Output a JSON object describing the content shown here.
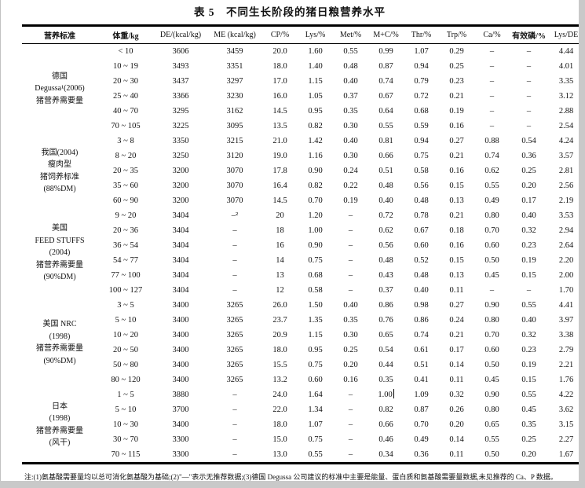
{
  "page": {
    "title": "表 5　不同生长阶段的猪日粮营养水平",
    "footnote": "注:(1)氨基酸需要量均以总可消化氨基酸为基础;(2)\"—\"表示无推荐数据;(3)德国 Degussa 公司建议的标准中主要是能量、蛋白质和氨基酸需要量数据,未见推荐的 Ca、P 数据。"
  },
  "table": {
    "columns": [
      "营养标准",
      "体重/kg",
      "DE/(kcal/kg)",
      "ME (kcal/kg)",
      "CP/%",
      "Lys/%",
      "Met/%",
      "M+C/%",
      "Thr/%",
      "Trp/%",
      "Ca/%",
      "有效磷/%",
      "Lys/DE"
    ],
    "groups": [
      {
        "label_lines": [
          "德国",
          "Degussa¹(2006)",
          "猪营养需要量"
        ],
        "rows": [
          [
            "< 10",
            "3606",
            "3459",
            "20.0",
            "1.60",
            "0.55",
            "0.99",
            "1.07",
            "0.29",
            "–",
            "–",
            "4.44"
          ],
          [
            "10 ~ 19",
            "3493",
            "3351",
            "18.0",
            "1.40",
            "0.48",
            "0.87",
            "0.94",
            "0.25",
            "–",
            "–",
            "4.01"
          ],
          [
            "20 ~ 30",
            "3437",
            "3297",
            "17.0",
            "1.15",
            "0.40",
            "0.74",
            "0.79",
            "0.23",
            "–",
            "–",
            "3.35"
          ],
          [
            "25 ~ 40",
            "3366",
            "3230",
            "16.0",
            "1.05",
            "0.37",
            "0.67",
            "0.72",
            "0.21",
            "–",
            "–",
            "3.12"
          ],
          [
            "40 ~ 70",
            "3295",
            "3162",
            "14.5",
            "0.95",
            "0.35",
            "0.64",
            "0.68",
            "0.19",
            "–",
            "–",
            "2.88"
          ],
          [
            "70 ~ 105",
            "3225",
            "3095",
            "13.5",
            "0.82",
            "0.30",
            "0.55",
            "0.59",
            "0.16",
            "–",
            "–",
            "2.54"
          ]
        ]
      },
      {
        "label_lines": [
          "我国(2004)",
          "瘦肉型",
          "猪饲养标准",
          "(88%DM)"
        ],
        "rows": [
          [
            "3 ~ 8",
            "3350",
            "3215",
            "21.0",
            "1.42",
            "0.40",
            "0.81",
            "0.94",
            "0.27",
            "0.88",
            "0.54",
            "4.24"
          ],
          [
            "8 ~ 20",
            "3250",
            "3120",
            "19.0",
            "1.16",
            "0.30",
            "0.66",
            "0.75",
            "0.21",
            "0.74",
            "0.36",
            "3.57"
          ],
          [
            "20 ~ 35",
            "3200",
            "3070",
            "17.8",
            "0.90",
            "0.24",
            "0.51",
            "0.58",
            "0.16",
            "0.62",
            "0.25",
            "2.81"
          ],
          [
            "35 ~ 60",
            "3200",
            "3070",
            "16.4",
            "0.82",
            "0.22",
            "0.48",
            "0.56",
            "0.15",
            "0.55",
            "0.20",
            "2.56"
          ],
          [
            "60 ~ 90",
            "3200",
            "3070",
            "14.5",
            "0.70",
            "0.19",
            "0.40",
            "0.48",
            "0.13",
            "0.49",
            "0.17",
            "2.19"
          ]
        ]
      },
      {
        "label_lines": [
          "美国",
          "FEED STUFFS",
          "(2004)",
          "猪营养需要量",
          "(90%DM)"
        ],
        "rows": [
          [
            "9 ~ 20",
            "3404",
            "–²",
            "20",
            "1.20",
            "–",
            "0.72",
            "0.78",
            "0.21",
            "0.80",
            "0.40",
            "3.53"
          ],
          [
            "20 ~ 36",
            "3404",
            "–",
            "18",
            "1.00",
            "–",
            "0.62",
            "0.67",
            "0.18",
            "0.70",
            "0.32",
            "2.94"
          ],
          [
            "36 ~ 54",
            "3404",
            "–",
            "16",
            "0.90",
            "–",
            "0.56",
            "0.60",
            "0.16",
            "0.60",
            "0.23",
            "2.64"
          ],
          [
            "54 ~ 77",
            "3404",
            "–",
            "14",
            "0.75",
            "–",
            "0.48",
            "0.52",
            "0.15",
            "0.50",
            "0.19",
            "2.20"
          ],
          [
            "77 ~ 100",
            "3404",
            "–",
            "13",
            "0.68",
            "–",
            "0.43",
            "0.48",
            "0.13",
            "0.45",
            "0.15",
            "2.00"
          ],
          [
            "100 ~ 127",
            "3404",
            "–",
            "12",
            "0.58",
            "–",
            "0.37",
            "0.40",
            "0.11",
            "–",
            "–",
            "1.70"
          ]
        ]
      },
      {
        "label_lines": [
          "美国 NRC",
          "(1998)",
          "猪营养需要量",
          "(90%DM)"
        ],
        "rows": [
          [
            "3 ~ 5",
            "3400",
            "3265",
            "26.0",
            "1.50",
            "0.40",
            "0.86",
            "0.98",
            "0.27",
            "0.90",
            "0.55",
            "4.41"
          ],
          [
            "5 ~ 10",
            "3400",
            "3265",
            "23.7",
            "1.35",
            "0.35",
            "0.76",
            "0.86",
            "0.24",
            "0.80",
            "0.40",
            "3.97"
          ],
          [
            "10 ~ 20",
            "3400",
            "3265",
            "20.9",
            "1.15",
            "0.30",
            "0.65",
            "0.74",
            "0.21",
            "0.70",
            "0.32",
            "3.38"
          ],
          [
            "20 ~ 50",
            "3400",
            "3265",
            "18.0",
            "0.95",
            "0.25",
            "0.54",
            "0.61",
            "0.17",
            "0.60",
            "0.23",
            "2.79"
          ],
          [
            "50 ~ 80",
            "3400",
            "3265",
            "15.5",
            "0.75",
            "0.20",
            "0.44",
            "0.51",
            "0.14",
            "0.50",
            "0.19",
            "2.21"
          ],
          [
            "80 ~ 120",
            "3400",
            "3265",
            "13.2",
            "0.60",
            "0.16",
            "0.35",
            "0.41",
            "0.11",
            "0.45",
            "0.15",
            "1.76"
          ]
        ]
      },
      {
        "label_lines": [
          "日本",
          "(1998)",
          "猪营养需要量",
          "(风干)"
        ],
        "rows": [
          [
            "1 ~ 5",
            "3880",
            "–",
            "24.0",
            "1.64",
            "–",
            "1.00",
            "1.09",
            "0.32",
            "0.90",
            "0.55",
            "4.22"
          ],
          [
            "5 ~ 10",
            "3700",
            "–",
            "22.0",
            "1.34",
            "–",
            "0.82",
            "0.87",
            "0.26",
            "0.80",
            "0.45",
            "3.62"
          ],
          [
            "10 ~ 30",
            "3400",
            "–",
            "18.0",
            "1.07",
            "–",
            "0.66",
            "0.70",
            "0.20",
            "0.65",
            "0.35",
            "3.15"
          ],
          [
            "30 ~ 70",
            "3300",
            "–",
            "15.0",
            "0.75",
            "–",
            "0.46",
            "0.49",
            "0.14",
            "0.55",
            "0.25",
            "2.27"
          ],
          [
            "70 ~ 115",
            "3300",
            "–",
            "13.0",
            "0.55",
            "–",
            "0.34",
            "0.36",
            "0.11",
            "0.50",
            "0.20",
            "1.67"
          ]
        ]
      }
    ],
    "cursor": {
      "group": 4,
      "row": 0,
      "col": 6
    }
  }
}
